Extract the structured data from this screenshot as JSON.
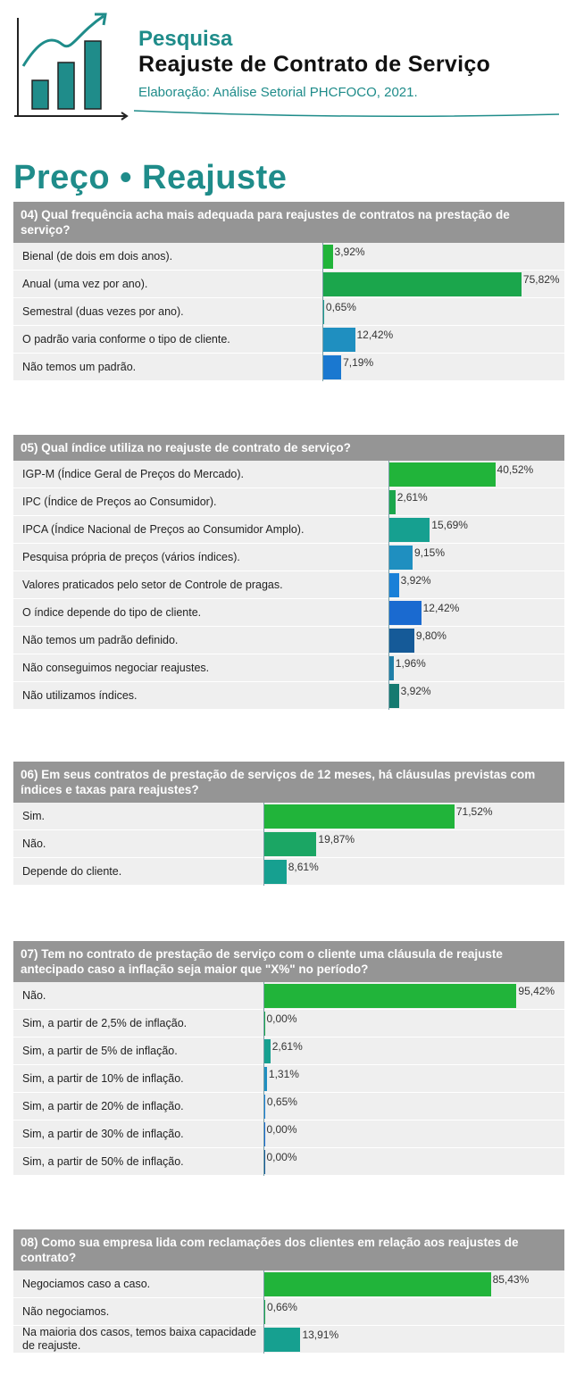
{
  "header": {
    "kicker": "Pesquisa",
    "title": "Reajuste de Contrato de Serviço",
    "subtitle": "Elaboração: Análise Setorial PHCFOCO, 2021."
  },
  "section_title": "Preço • Reajuste",
  "chart_data": [
    {
      "type": "bar",
      "orientation": "horizontal",
      "title": "04) Qual frequência acha mais adequada para reajustes de contratos na prestação de serviço?",
      "categories": [
        "Bienal (de dois em dois anos).",
        "Anual (uma vez por ano).",
        "Semestral (duas vezes por ano).",
        "O padrão varia conforme o tipo de cliente.",
        "Não temos um padrão."
      ],
      "values": [
        3.92,
        75.82,
        0.65,
        12.42,
        7.19
      ],
      "value_labels": [
        "3,92%",
        "75,82%",
        "0,65%",
        "12,42%",
        "7,19%"
      ],
      "colors": [
        "#21b43a",
        "#1ba64c",
        "#1b9a8e",
        "#1f8fc0",
        "#1a78d0"
      ]
    },
    {
      "type": "bar",
      "orientation": "horizontal",
      "title": "05) Qual índice utiliza no reajuste de contrato de serviço?",
      "categories": [
        "IGP-M (Índice Geral de Preços do Mercado).",
        "IPC (Índice de Preços ao Consumidor).",
        "IPCA (Índice Nacional de Preços ao Consumidor Amplo).",
        "Pesquisa própria de preços (vários índices).",
        "Valores praticados pelo setor de Controle de pragas.",
        "O índice depende do tipo de cliente.",
        "Não temos um padrão definido.",
        "Não conseguimos negociar reajustes.",
        "Não utilizamos índices."
      ],
      "values": [
        40.52,
        2.61,
        15.69,
        9.15,
        3.92,
        12.42,
        9.8,
        1.96,
        3.92
      ],
      "value_labels": [
        "40,52%",
        "2,61%",
        "15,69%",
        "9,15%",
        "3,92%",
        "12,42%",
        "9,80%",
        "1,96%",
        "3,92%"
      ],
      "colors": [
        "#21b43a",
        "#1ba64c",
        "#16a090",
        "#1f8fc0",
        "#1a80d8",
        "#1a6ad0",
        "#155a98",
        "#1f7ea8",
        "#157a70"
      ]
    },
    {
      "type": "bar",
      "orientation": "horizontal",
      "title": "06) Em seus contratos de prestação de serviços de 12 meses, há cláusulas previstas com índices e taxas para reajustes?",
      "categories": [
        "Sim.",
        "Não.",
        "Depende do cliente."
      ],
      "values": [
        71.52,
        19.87,
        8.61
      ],
      "value_labels": [
        "71,52%",
        "19,87%",
        "8,61%"
      ],
      "colors": [
        "#21b43a",
        "#1ba664",
        "#16a090"
      ]
    },
    {
      "type": "bar",
      "orientation": "horizontal",
      "title": "07) Tem no contrato de prestação de serviço com o cliente uma cláusula de reajuste antecipado caso a inflação seja maior que \"X%\" no período?",
      "categories": [
        "Não.",
        "Sim, a partir de 2,5% de inflação.",
        "Sim, a partir de 5% de inflação.",
        "Sim, a partir de 10% de inflação.",
        "Sim, a partir de 20% de inflação.",
        "Sim, a partir de 30% de inflação.",
        "Sim, a partir de 50% de inflação."
      ],
      "values": [
        95.42,
        0.0,
        2.61,
        1.31,
        0.65,
        0.0,
        0.0
      ],
      "value_labels": [
        "95,42%",
        "0,00%",
        "2,61%",
        "1,31%",
        "0,65%",
        "0,00%",
        "0,00%"
      ],
      "colors": [
        "#21b43a",
        "#1ba64c",
        "#16a090",
        "#1f8fc0",
        "#1a80d8",
        "#1a6ad0",
        "#155a98"
      ]
    },
    {
      "type": "bar",
      "orientation": "horizontal",
      "title": "08) Como sua empresa lida com reclamações dos clientes em relação aos reajustes de contrato?",
      "categories": [
        "Negociamos caso a caso.",
        "Não negociamos.",
        "Na maioria dos casos, temos baixa capacidade de reajuste."
      ],
      "values": [
        85.43,
        0.66,
        13.91
      ],
      "value_labels": [
        "85,43%",
        "0,66%",
        "13,91%"
      ],
      "colors": [
        "#21b43a",
        "#1ba64c",
        "#16a090"
      ]
    }
  ]
}
